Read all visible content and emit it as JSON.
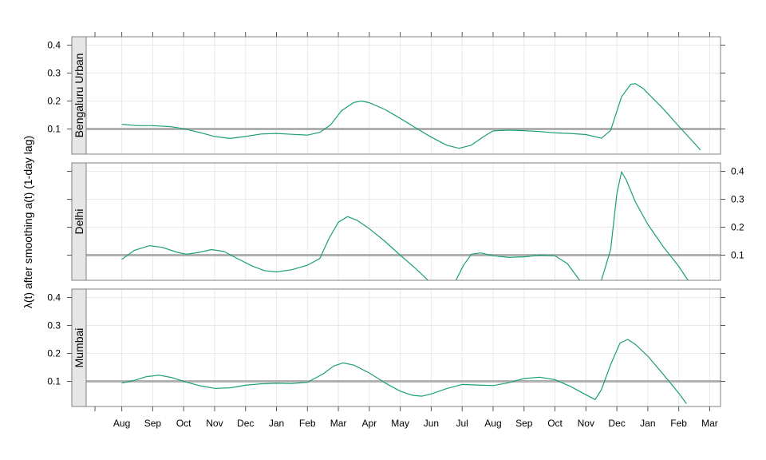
{
  "chart_data": {
    "type": "line",
    "ylabel_symbol": "λ(t)",
    "ylabel_rest": " after smoothing a(t) (1-day lag)",
    "x_tick_labels": [
      "Aug",
      "Sep",
      "Oct",
      "Nov",
      "Dec",
      "Jan",
      "Feb",
      "Mar",
      "Apr",
      "May",
      "Jun",
      "Jul",
      "Aug",
      "Sep",
      "Oct",
      "Nov",
      "Dec",
      "Jan",
      "Feb",
      "Mar"
    ],
    "x_tick_months": [
      0,
      1,
      2,
      3,
      4,
      5,
      6,
      7,
      8,
      9,
      10,
      11,
      12,
      13,
      14,
      15,
      16,
      17,
      18,
      19
    ],
    "x_range_months": [
      -1.15,
      19.35
    ],
    "y_ticks": [
      0.1,
      0.2,
      0.3,
      0.4
    ],
    "y_tick_labels": [
      "0.1",
      "0.2",
      "0.3",
      "0.4"
    ],
    "ylim": [
      0.01,
      0.43
    ],
    "reference_line": 0.1,
    "grid": true,
    "line_color": "#1b9e77",
    "ref_color": "#b0b0b0",
    "panels": [
      {
        "name": "Bengaluru Urban",
        "points": [
          [
            0,
            0.117
          ],
          [
            0.5,
            0.112
          ],
          [
            1,
            0.112
          ],
          [
            1.6,
            0.108
          ],
          [
            2,
            0.101
          ],
          [
            2.5,
            0.088
          ],
          [
            3,
            0.073
          ],
          [
            3.5,
            0.066
          ],
          [
            4,
            0.073
          ],
          [
            4.5,
            0.082
          ],
          [
            5,
            0.084
          ],
          [
            5.5,
            0.081
          ],
          [
            6,
            0.078
          ],
          [
            6.4,
            0.088
          ],
          [
            6.75,
            0.115
          ],
          [
            7.1,
            0.165
          ],
          [
            7.5,
            0.195
          ],
          [
            7.75,
            0.2
          ],
          [
            8,
            0.194
          ],
          [
            8.5,
            0.17
          ],
          [
            9,
            0.138
          ],
          [
            9.5,
            0.104
          ],
          [
            10,
            0.071
          ],
          [
            10.5,
            0.042
          ],
          [
            10.9,
            0.031
          ],
          [
            11.3,
            0.042
          ],
          [
            11.7,
            0.073
          ],
          [
            12,
            0.093
          ],
          [
            12.5,
            0.096
          ],
          [
            13,
            0.094
          ],
          [
            13.5,
            0.091
          ],
          [
            14,
            0.086
          ],
          [
            14.5,
            0.084
          ],
          [
            15,
            0.08
          ],
          [
            15.5,
            0.067
          ],
          [
            15.8,
            0.095
          ],
          [
            16.15,
            0.215
          ],
          [
            16.45,
            0.26
          ],
          [
            16.6,
            0.262
          ],
          [
            16.85,
            0.245
          ],
          [
            17.5,
            0.172
          ],
          [
            18,
            0.11
          ],
          [
            18.5,
            0.05
          ],
          [
            18.7,
            0.025
          ]
        ]
      },
      {
        "name": "Delhi",
        "points": [
          [
            0,
            0.085
          ],
          [
            0.4,
            0.117
          ],
          [
            0.9,
            0.134
          ],
          [
            1.3,
            0.128
          ],
          [
            1.8,
            0.11
          ],
          [
            2.1,
            0.103
          ],
          [
            2.5,
            0.11
          ],
          [
            2.9,
            0.12
          ],
          [
            3.3,
            0.113
          ],
          [
            3.7,
            0.09
          ],
          [
            4.2,
            0.062
          ],
          [
            4.6,
            0.045
          ],
          [
            5,
            0.04
          ],
          [
            5.5,
            0.048
          ],
          [
            6,
            0.064
          ],
          [
            6.4,
            0.088
          ],
          [
            6.7,
            0.16
          ],
          [
            7,
            0.218
          ],
          [
            7.3,
            0.238
          ],
          [
            7.6,
            0.225
          ],
          [
            8,
            0.195
          ],
          [
            8.5,
            0.15
          ],
          [
            9,
            0.1
          ],
          [
            9.5,
            0.052
          ],
          [
            9.9,
            0.01
          ]
        ],
        "points2": [
          [
            10.8,
            0.01
          ],
          [
            11.05,
            0.065
          ],
          [
            11.3,
            0.103
          ],
          [
            11.6,
            0.108
          ],
          [
            12,
            0.098
          ],
          [
            12.5,
            0.092
          ],
          [
            13,
            0.094
          ],
          [
            13.5,
            0.1
          ],
          [
            14,
            0.098
          ],
          [
            14.4,
            0.07
          ],
          [
            14.8,
            0.01
          ]
        ],
        "points3": [
          [
            15.5,
            0.01
          ],
          [
            15.8,
            0.12
          ],
          [
            16.0,
            0.32
          ],
          [
            16.15,
            0.398
          ],
          [
            16.3,
            0.37
          ],
          [
            16.6,
            0.29
          ],
          [
            17,
            0.21
          ],
          [
            17.5,
            0.13
          ],
          [
            18,
            0.06
          ],
          [
            18.3,
            0.01
          ]
        ]
      },
      {
        "name": "Mumbai",
        "points": [
          [
            0,
            0.094
          ],
          [
            0.4,
            0.103
          ],
          [
            0.8,
            0.117
          ],
          [
            1.2,
            0.122
          ],
          [
            1.6,
            0.114
          ],
          [
            2,
            0.1
          ],
          [
            2.5,
            0.085
          ],
          [
            3,
            0.075
          ],
          [
            3.5,
            0.077
          ],
          [
            4,
            0.086
          ],
          [
            4.5,
            0.091
          ],
          [
            5,
            0.093
          ],
          [
            5.5,
            0.092
          ],
          [
            6,
            0.097
          ],
          [
            6.5,
            0.126
          ],
          [
            6.85,
            0.155
          ],
          [
            7.15,
            0.166
          ],
          [
            7.5,
            0.158
          ],
          [
            8,
            0.13
          ],
          [
            8.5,
            0.095
          ],
          [
            9,
            0.065
          ],
          [
            9.4,
            0.05
          ],
          [
            9.7,
            0.047
          ],
          [
            10,
            0.055
          ],
          [
            10.5,
            0.074
          ],
          [
            11,
            0.089
          ],
          [
            11.5,
            0.087
          ],
          [
            12,
            0.085
          ],
          [
            12.5,
            0.095
          ],
          [
            13,
            0.11
          ],
          [
            13.5,
            0.115
          ],
          [
            14,
            0.106
          ],
          [
            14.5,
            0.082
          ],
          [
            15,
            0.052
          ],
          [
            15.3,
            0.035
          ],
          [
            15.5,
            0.07
          ],
          [
            15.8,
            0.16
          ],
          [
            16.1,
            0.237
          ],
          [
            16.35,
            0.25
          ],
          [
            16.6,
            0.232
          ],
          [
            17,
            0.19
          ],
          [
            17.5,
            0.125
          ],
          [
            18,
            0.058
          ],
          [
            18.25,
            0.02
          ]
        ]
      }
    ]
  }
}
